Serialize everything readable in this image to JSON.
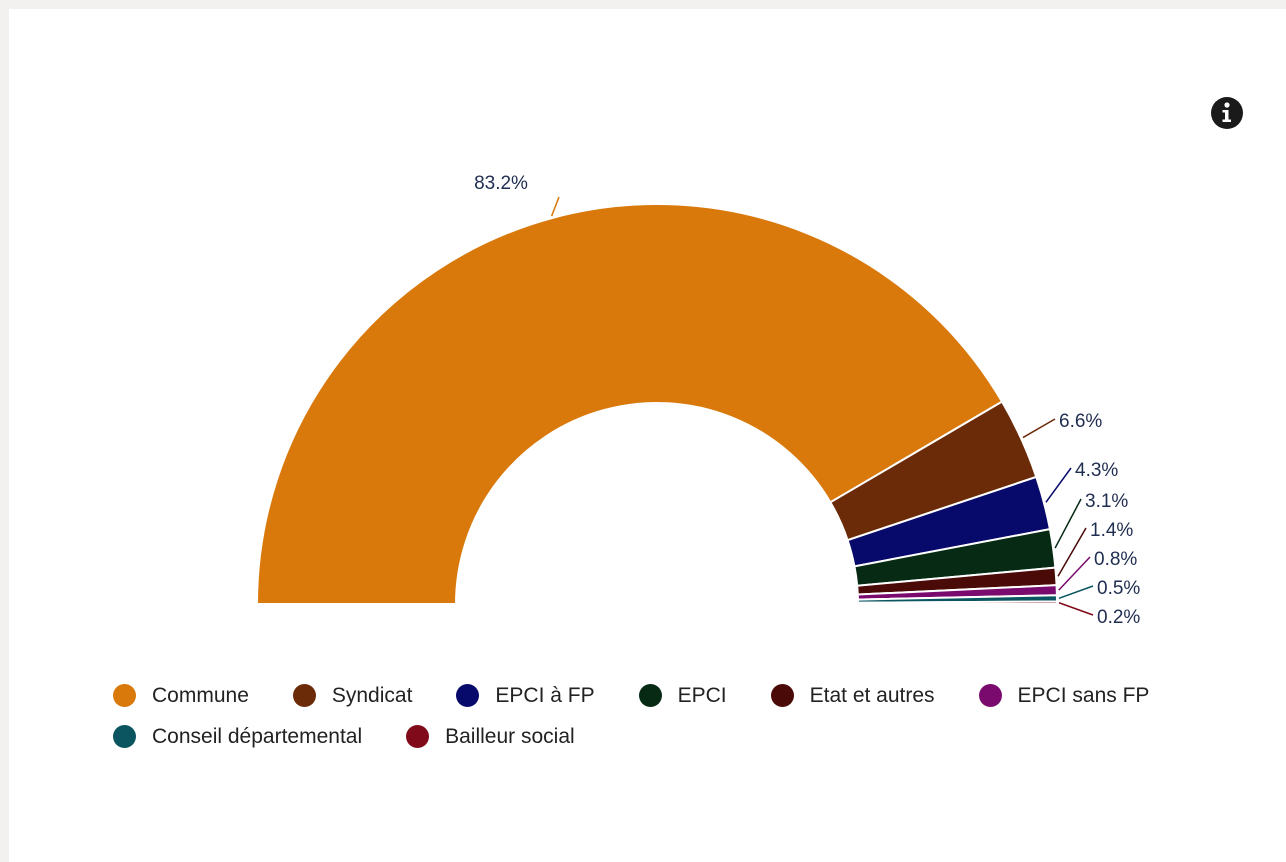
{
  "info_icon": "info-circle-icon",
  "colors": {
    "background": "#f2f1ef",
    "card": "#ffffff",
    "label_text": "#1f2d50"
  },
  "chart_data": {
    "type": "pie",
    "variant": "semicircle-donut",
    "legend_position": "bottom",
    "slices": [
      {
        "name": "Commune",
        "value": 83.2,
        "label": "83.2%",
        "color": "#d9780b"
      },
      {
        "name": "Syndicat",
        "value": 6.6,
        "label": "6.6%",
        "color": "#6b2a08"
      },
      {
        "name": "EPCI à FP",
        "value": 4.3,
        "label": "4.3%",
        "color": "#080a6b"
      },
      {
        "name": "EPCI",
        "value": 3.1,
        "label": "3.1%",
        "color": "#062a14"
      },
      {
        "name": "Etat et autres",
        "value": 1.4,
        "label": "1.4%",
        "color": "#4a0a08"
      },
      {
        "name": "EPCI sans FP",
        "value": 0.8,
        "label": "0.8%",
        "color": "#7a0a6e"
      },
      {
        "name": "Conseil départemental",
        "value": 0.5,
        "label": "0.5%",
        "color": "#0a5560"
      },
      {
        "name": "Bailleur social",
        "value": 0.2,
        "label": "0.2%",
        "color": "#800a1a"
      }
    ]
  }
}
